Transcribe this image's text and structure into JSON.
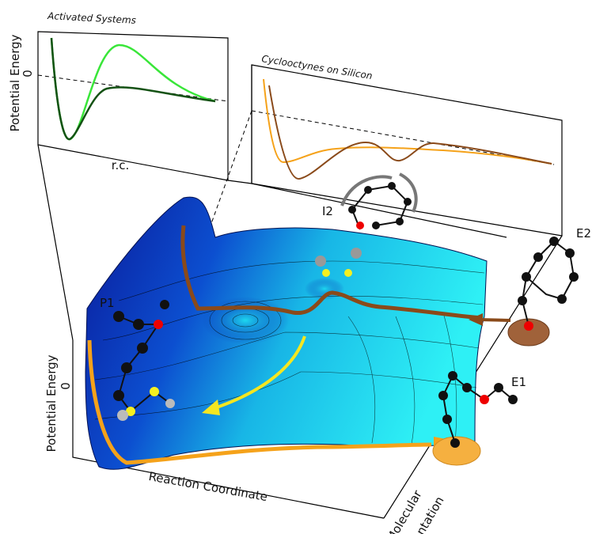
{
  "inset_activated": {
    "title": "Activated Systems",
    "y_axis_label": "Potential Energy",
    "zero_label": "0",
    "x_axis_label": "r.c."
  },
  "inset_silicon": {
    "title": "Cyclooctynes on Silicon"
  },
  "surface": {
    "y_axis_label": "Potential Energy",
    "zero_label": "0",
    "x_axis_label": "Reaction Coordinate",
    "depth_axis_label": [
      "Molecular",
      "Orientation"
    ]
  },
  "states": {
    "i2": "I2",
    "e2": "E2",
    "p1": "P1",
    "e1": "E1"
  }
}
